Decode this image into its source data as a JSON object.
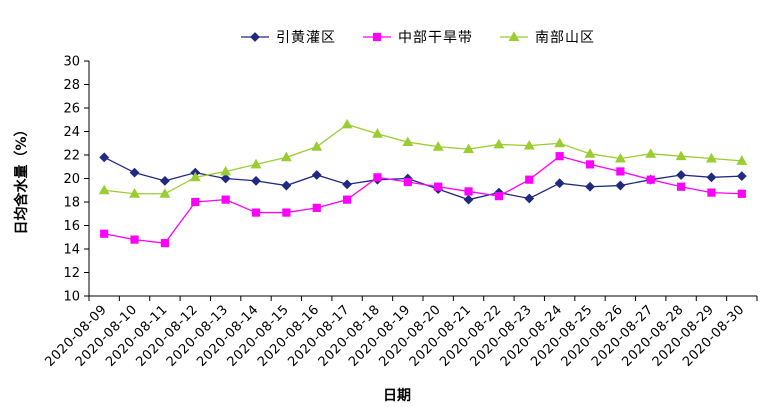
{
  "chart_data": {
    "type": "line",
    "title": "",
    "xlabel": "日期",
    "ylabel": "日均含水量（%）",
    "ylim": [
      10,
      30
    ],
    "ytick_step": 2,
    "yticks": [
      "10",
      "12",
      "14",
      "16",
      "18",
      "20",
      "22",
      "24",
      "26",
      "28",
      "30"
    ],
    "grid": false,
    "legend_position": "top-center",
    "categories": [
      "2020-08-09",
      "2020-08-10",
      "2020-08-11",
      "2020-08-12",
      "2020-08-13",
      "2020-08-14",
      "2020-08-15",
      "2020-08-16",
      "2020-08-17",
      "2020-08-18",
      "2020-08-19",
      "2020-08-20",
      "2020-08-21",
      "2020-08-22",
      "2020-08-23",
      "2020-08-24",
      "2020-08-25",
      "2020-08-26",
      "2020-08-27",
      "2020-08-28",
      "2020-08-29",
      "2020-08-30"
    ],
    "series": [
      {
        "name": "引黄灌区",
        "color": "#1f2a80",
        "marker": "diamond",
        "values": [
          21.8,
          20.5,
          19.8,
          20.5,
          20.0,
          19.8,
          19.4,
          20.3,
          19.5,
          19.9,
          20.0,
          19.1,
          18.2,
          18.8,
          18.3,
          19.6,
          19.3,
          19.4,
          19.9,
          20.3,
          20.1,
          20.2
        ]
      },
      {
        "name": "中部干旱带",
        "color": "#ff00ff",
        "marker": "square",
        "values": [
          15.3,
          14.8,
          14.5,
          18.0,
          18.2,
          17.1,
          17.1,
          17.5,
          18.2,
          20.1,
          19.7,
          19.3,
          18.9,
          18.5,
          19.9,
          21.9,
          21.2,
          20.6,
          19.9,
          19.3,
          18.8,
          18.7
        ]
      },
      {
        "name": "南部山区",
        "color": "#9acd32",
        "marker": "triangle",
        "values": [
          19.0,
          18.7,
          18.7,
          20.1,
          20.6,
          21.2,
          21.8,
          22.7,
          24.6,
          23.8,
          23.1,
          22.7,
          22.5,
          22.9,
          22.8,
          23.0,
          22.1,
          21.7,
          22.1,
          21.9,
          21.7,
          21.5
        ]
      }
    ]
  }
}
